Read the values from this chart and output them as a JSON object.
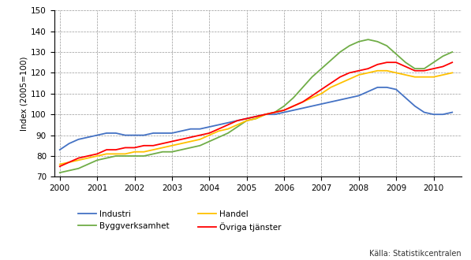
{
  "title": "",
  "ylabel": "Index (2005=100)",
  "source": "Källa: Statistikcentralen",
  "ylim": [
    70,
    150
  ],
  "yticks": [
    70,
    80,
    90,
    100,
    110,
    120,
    130,
    140,
    150
  ],
  "background_color": "#ffffff",
  "grid_color": "#999999",
  "series": {
    "Industri": {
      "color": "#4472c4",
      "x": [
        2000.0,
        2000.25,
        2000.5,
        2000.75,
        2001.0,
        2001.25,
        2001.5,
        2001.75,
        2002.0,
        2002.25,
        2002.5,
        2002.75,
        2003.0,
        2003.25,
        2003.5,
        2003.75,
        2004.0,
        2004.25,
        2004.5,
        2004.75,
        2005.0,
        2005.25,
        2005.5,
        2005.75,
        2006.0,
        2006.25,
        2006.5,
        2006.75,
        2007.0,
        2007.25,
        2007.5,
        2007.75,
        2008.0,
        2008.25,
        2008.5,
        2008.75,
        2009.0,
        2009.25,
        2009.5,
        2009.75,
        2010.0,
        2010.25,
        2010.5
      ],
      "y": [
        83,
        86,
        88,
        89,
        90,
        91,
        91,
        90,
        90,
        90,
        91,
        91,
        91,
        92,
        93,
        93,
        94,
        95,
        96,
        97,
        98,
        99,
        100,
        100,
        101,
        102,
        103,
        104,
        105,
        106,
        107,
        108,
        109,
        111,
        113,
        113,
        112,
        108,
        104,
        101,
        100,
        100,
        101
      ]
    },
    "Byggverksamhet": {
      "color": "#70ad47",
      "x": [
        2000.0,
        2000.25,
        2000.5,
        2000.75,
        2001.0,
        2001.25,
        2001.5,
        2001.75,
        2002.0,
        2002.25,
        2002.5,
        2002.75,
        2003.0,
        2003.25,
        2003.5,
        2003.75,
        2004.0,
        2004.25,
        2004.5,
        2004.75,
        2005.0,
        2005.25,
        2005.5,
        2005.75,
        2006.0,
        2006.25,
        2006.5,
        2006.75,
        2007.0,
        2007.25,
        2007.5,
        2007.75,
        2008.0,
        2008.25,
        2008.5,
        2008.75,
        2009.0,
        2009.25,
        2009.5,
        2009.75,
        2010.0,
        2010.25,
        2010.5
      ],
      "y": [
        72,
        73,
        74,
        76,
        78,
        79,
        80,
        80,
        80,
        80,
        81,
        82,
        82,
        83,
        84,
        85,
        87,
        89,
        91,
        94,
        97,
        98,
        100,
        101,
        104,
        108,
        113,
        118,
        122,
        126,
        130,
        133,
        135,
        136,
        135,
        133,
        129,
        125,
        122,
        122,
        125,
        128,
        130
      ]
    },
    "Handel": {
      "color": "#ffc000",
      "x": [
        2000.0,
        2000.25,
        2000.5,
        2000.75,
        2001.0,
        2001.25,
        2001.5,
        2001.75,
        2002.0,
        2002.25,
        2002.5,
        2002.75,
        2003.0,
        2003.25,
        2003.5,
        2003.75,
        2004.0,
        2004.25,
        2004.5,
        2004.75,
        2005.0,
        2005.25,
        2005.5,
        2005.75,
        2006.0,
        2006.25,
        2006.5,
        2006.75,
        2007.0,
        2007.25,
        2007.5,
        2007.75,
        2008.0,
        2008.25,
        2008.5,
        2008.75,
        2009.0,
        2009.25,
        2009.5,
        2009.75,
        2010.0,
        2010.25,
        2010.5
      ],
      "y": [
        76,
        77,
        78,
        79,
        80,
        81,
        81,
        81,
        82,
        82,
        83,
        84,
        85,
        86,
        87,
        88,
        90,
        92,
        93,
        95,
        97,
        98,
        100,
        101,
        102,
        104,
        106,
        108,
        110,
        113,
        115,
        117,
        119,
        120,
        121,
        121,
        120,
        119,
        118,
        118,
        118,
        119,
        120
      ]
    },
    "Övriga tjänster": {
      "color": "#ff0000",
      "x": [
        2000.0,
        2000.25,
        2000.5,
        2000.75,
        2001.0,
        2001.25,
        2001.5,
        2001.75,
        2002.0,
        2002.25,
        2002.5,
        2002.75,
        2003.0,
        2003.25,
        2003.5,
        2003.75,
        2004.0,
        2004.25,
        2004.5,
        2004.75,
        2005.0,
        2005.25,
        2005.5,
        2005.75,
        2006.0,
        2006.25,
        2006.5,
        2006.75,
        2007.0,
        2007.25,
        2007.5,
        2007.75,
        2008.0,
        2008.25,
        2008.5,
        2008.75,
        2009.0,
        2009.25,
        2009.5,
        2009.75,
        2010.0,
        2010.25,
        2010.5
      ],
      "y": [
        75,
        77,
        79,
        80,
        81,
        83,
        83,
        84,
        84,
        85,
        85,
        86,
        87,
        88,
        89,
        90,
        91,
        93,
        95,
        97,
        98,
        99,
        100,
        101,
        102,
        104,
        106,
        109,
        112,
        115,
        118,
        120,
        121,
        122,
        124,
        125,
        125,
        123,
        121,
        121,
        122,
        123,
        125
      ]
    }
  },
  "legend_order": [
    "Industri",
    "Byggverksamhet",
    "Handel",
    "Övriga tjänster"
  ],
  "xticks": [
    2000,
    2001,
    2002,
    2003,
    2004,
    2005,
    2006,
    2007,
    2008,
    2009,
    2010
  ],
  "xlim": [
    1999.85,
    2010.75
  ]
}
